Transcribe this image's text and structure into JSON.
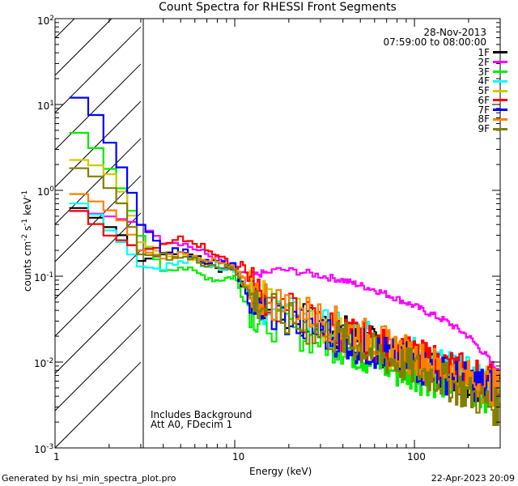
{
  "chart_data": {
    "type": "line",
    "title": "Count Spectra for RHESSI Front Segments",
    "date": "28-Nov-2013",
    "time_range": "07:59:00 to 08:00:00",
    "xlabel": "Energy (keV)",
    "ylabel": "counts cm^-2 s^-1 keV^-1",
    "ylabel_parts": {
      "base": "counts cm",
      "e1": "-2",
      "mid1": " s",
      "e2": "-1",
      "mid2": " keV",
      "e3": "-1"
    },
    "xscale": "log",
    "yscale": "log",
    "xlim": [
      1,
      300
    ],
    "ylim": [
      0.001,
      100
    ],
    "x_ticks": [
      {
        "value": 1,
        "label": "1"
      },
      {
        "value": 10,
        "label": "10"
      },
      {
        "value": 100,
        "label": "100"
      }
    ],
    "y_ticks": [
      {
        "value": 0.001,
        "base": "10",
        "exp": "-3"
      },
      {
        "value": 0.01,
        "base": "10",
        "exp": "-2"
      },
      {
        "value": 0.1,
        "base": "10",
        "exp": "-1"
      },
      {
        "value": 1,
        "base": "10",
        "exp": "0"
      },
      {
        "value": 10,
        "base": "10",
        "exp": "1"
      },
      {
        "value": 100,
        "base": "10",
        "exp": "2"
      }
    ],
    "hatched_region": [
      1,
      3
    ],
    "series": [
      {
        "name": "1F",
        "color": "#000000",
        "anchors": [
          [
            1.2,
            0.72
          ],
          [
            1.6,
            0.52
          ],
          [
            2,
            0.38
          ],
          [
            2.6,
            0.26
          ],
          [
            3,
            0.15
          ],
          [
            4,
            0.18
          ],
          [
            5,
            0.2
          ],
          [
            6,
            0.17
          ],
          [
            8,
            0.12
          ],
          [
            10,
            0.13
          ],
          [
            11,
            0.08
          ],
          [
            13,
            0.05
          ],
          [
            20,
            0.035
          ],
          [
            40,
            0.022
          ],
          [
            80,
            0.012
          ],
          [
            150,
            0.008
          ],
          [
            280,
            0.005
          ]
        ]
      },
      {
        "name": "2F",
        "color": "#ff00ff",
        "anchors": [
          [
            1.2,
            0.6
          ],
          [
            1.6,
            0.55
          ],
          [
            2,
            0.5
          ],
          [
            2.5,
            0.45
          ],
          [
            3,
            0.4
          ],
          [
            4,
            0.26
          ],
          [
            5,
            0.25
          ],
          [
            7,
            0.18
          ],
          [
            9,
            0.14
          ],
          [
            12,
            0.1
          ],
          [
            15,
            0.11
          ],
          [
            18,
            0.12
          ],
          [
            25,
            0.11
          ],
          [
            40,
            0.09
          ],
          [
            60,
            0.07
          ],
          [
            80,
            0.055
          ],
          [
            100,
            0.045
          ],
          [
            150,
            0.03
          ],
          [
            200,
            0.02
          ],
          [
            250,
            0.012
          ],
          [
            300,
            0.007
          ]
        ]
      },
      {
        "name": "3F",
        "color": "#00ee00",
        "anchors": [
          [
            1.2,
            4.5
          ],
          [
            1.5,
            4.8
          ],
          [
            1.8,
            2.5
          ],
          [
            2.2,
            1.4
          ],
          [
            2.6,
            0.7
          ],
          [
            3,
            0.3
          ],
          [
            4,
            0.12
          ],
          [
            5,
            0.13
          ],
          [
            6,
            0.11
          ],
          [
            8,
            0.09
          ],
          [
            10,
            0.1
          ],
          [
            11,
            0.06
          ],
          [
            13,
            0.035
          ],
          [
            20,
            0.025
          ],
          [
            40,
            0.015
          ],
          [
            80,
            0.008
          ],
          [
            150,
            0.006
          ],
          [
            280,
            0.004
          ]
        ]
      },
      {
        "name": "4F",
        "color": "#00ffff",
        "anchors": [
          [
            1.2,
            0.8
          ],
          [
            1.6,
            0.6
          ],
          [
            2,
            0.35
          ],
          [
            2.5,
            0.22
          ],
          [
            3,
            0.13
          ],
          [
            4,
            0.12
          ],
          [
            5,
            0.16
          ],
          [
            7,
            0.14
          ],
          [
            10,
            0.12
          ],
          [
            13,
            0.05
          ],
          [
            20,
            0.035
          ],
          [
            40,
            0.022
          ],
          [
            80,
            0.014
          ],
          [
            150,
            0.009
          ],
          [
            280,
            0.005
          ]
        ]
      },
      {
        "name": "5F",
        "color": "#cccc00",
        "anchors": [
          [
            1.2,
            2.4
          ],
          [
            1.6,
            2.1
          ],
          [
            2,
            1.6
          ],
          [
            2.5,
            0.8
          ],
          [
            3,
            0.25
          ],
          [
            4,
            0.18
          ],
          [
            5,
            0.18
          ],
          [
            7,
            0.15
          ],
          [
            10,
            0.14
          ],
          [
            13,
            0.06
          ],
          [
            20,
            0.04
          ],
          [
            40,
            0.02
          ],
          [
            80,
            0.012
          ],
          [
            150,
            0.008
          ],
          [
            280,
            0.005
          ]
        ]
      },
      {
        "name": "6F",
        "color": "#ff0000",
        "anchors": [
          [
            1.2,
            0.7
          ],
          [
            1.6,
            0.45
          ],
          [
            2,
            0.3
          ],
          [
            2.5,
            0.25
          ],
          [
            3,
            0.2
          ],
          [
            4,
            0.22
          ],
          [
            5,
            0.27
          ],
          [
            6,
            0.25
          ],
          [
            8,
            0.18
          ],
          [
            10,
            0.12
          ],
          [
            11,
            0.15
          ],
          [
            12,
            0.09
          ],
          [
            15,
            0.05
          ],
          [
            20,
            0.04
          ],
          [
            40,
            0.022
          ],
          [
            80,
            0.013
          ],
          [
            150,
            0.009
          ],
          [
            280,
            0.006
          ]
        ]
      },
      {
        "name": "7F",
        "color": "#0000ff",
        "anchors": [
          [
            1.2,
            12
          ],
          [
            1.5,
            12
          ],
          [
            1.8,
            6
          ],
          [
            2.2,
            2.5
          ],
          [
            2.6,
            1.2
          ],
          [
            3,
            0.4
          ],
          [
            3.5,
            0.3
          ],
          [
            4,
            0.2
          ],
          [
            5,
            0.2
          ],
          [
            7,
            0.15
          ],
          [
            10,
            0.13
          ],
          [
            12,
            0.05
          ],
          [
            20,
            0.03
          ],
          [
            40,
            0.018
          ],
          [
            80,
            0.011
          ],
          [
            150,
            0.007
          ],
          [
            280,
            0.005
          ]
        ]
      },
      {
        "name": "8F",
        "color": "#ff8000",
        "anchors": [
          [
            1.2,
            1.0
          ],
          [
            1.6,
            0.8
          ],
          [
            2,
            0.6
          ],
          [
            2.5,
            0.4
          ],
          [
            3,
            0.2
          ],
          [
            4,
            0.17
          ],
          [
            5,
            0.18
          ],
          [
            7,
            0.16
          ],
          [
            10,
            0.12
          ],
          [
            13,
            0.06
          ],
          [
            20,
            0.045
          ],
          [
            40,
            0.025
          ],
          [
            80,
            0.014
          ],
          [
            150,
            0.008
          ],
          [
            280,
            0.005
          ]
        ]
      },
      {
        "name": "9F",
        "color": "#808000",
        "anchors": [
          [
            1.2,
            2.0
          ],
          [
            1.6,
            1.6
          ],
          [
            2,
            1.1
          ],
          [
            2.5,
            0.6
          ],
          [
            3,
            0.18
          ],
          [
            4,
            0.17
          ],
          [
            5,
            0.17
          ],
          [
            7,
            0.14
          ],
          [
            10,
            0.12
          ],
          [
            13,
            0.05
          ],
          [
            20,
            0.03
          ],
          [
            40,
            0.018
          ],
          [
            80,
            0.01
          ],
          [
            150,
            0.006
          ],
          [
            280,
            0.003
          ]
        ]
      }
    ]
  },
  "notes": {
    "background": "Includes Background",
    "attenuator": "Att A0, FDecim 1"
  },
  "footer": {
    "generated_by": "Generated by hsi_min_spectra_plot.pro",
    "timestamp": "22-Apr-2023 20:09"
  }
}
